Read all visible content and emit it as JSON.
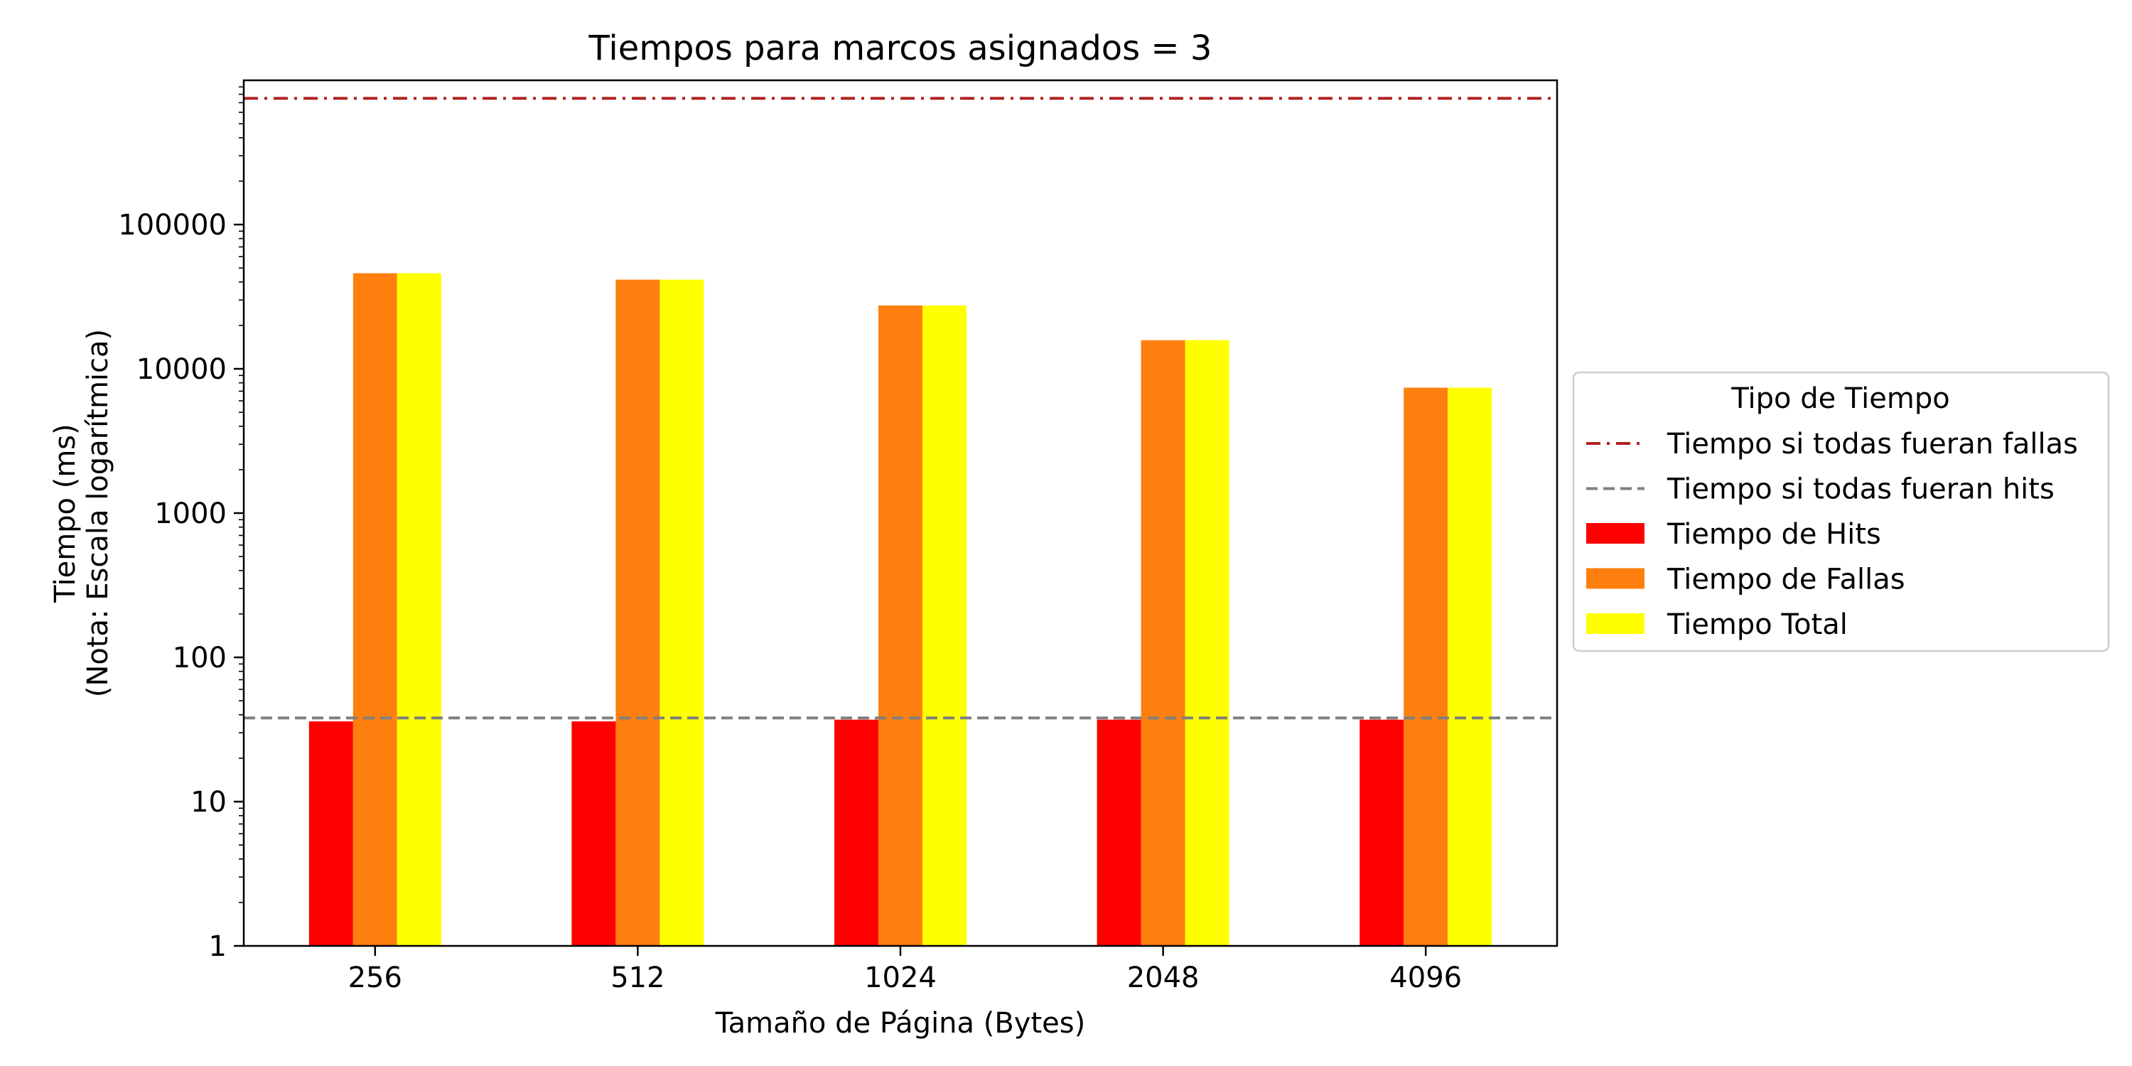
{
  "chart_data": {
    "type": "bar",
    "title": "Tiempos para marcos asignados = 3",
    "xlabel": "Tamaño de Página (Bytes)",
    "ylabel_line1": "Tiempo (ms)",
    "ylabel_line2": "(Nota: Escala logarítmica)",
    "y_scale": "log",
    "ylim": [
      1,
      1000000
    ],
    "y_ticks": [
      1,
      10,
      100,
      1000,
      10000,
      100000
    ],
    "y_tick_labels": [
      "1",
      "10",
      "100",
      "1000",
      "10000",
      "100000"
    ],
    "categories": [
      "256",
      "512",
      "1024",
      "2048",
      "4096"
    ],
    "series": [
      {
        "name": "Tiempo de Hits",
        "color": "#ff0000",
        "values": [
          36,
          36,
          37,
          37,
          37
        ]
      },
      {
        "name": "Tiempo de Fallas",
        "color": "#ff7f0e",
        "values": [
          46000,
          41500,
          27500,
          15800,
          7400
        ]
      },
      {
        "name": "Tiempo Total",
        "color": "#ffff00",
        "values": [
          46000,
          41500,
          27500,
          15800,
          7400
        ]
      }
    ],
    "reference_lines": [
      {
        "name": "Tiempo si todas fueran fallas",
        "value": 750000,
        "color": "#b22222",
        "style": "dashdot"
      },
      {
        "name": "Tiempo si todas fueran hits",
        "value": 38,
        "color": "#808080",
        "style": "dashed"
      }
    ],
    "legend": {
      "title": "Tipo de Tiempo",
      "placement": "outside-right",
      "entries": [
        "Tiempo si todas fueran fallas",
        "Tiempo si todas fueran hits",
        "Tiempo de Hits",
        "Tiempo de Fallas",
        "Tiempo Total"
      ]
    },
    "grid": false
  }
}
